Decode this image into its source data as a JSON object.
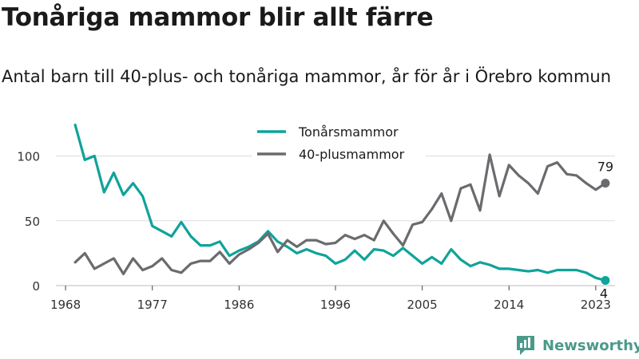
{
  "title": "Tonåriga mammor blir allt färre",
  "subtitle": "Antal barn till 40-plus- och tonåriga mammor, år för år i Örebro kommun",
  "brand": {
    "name": "Newsworthy",
    "icon": "bar-chart-logo-icon"
  },
  "colors": {
    "teen": "#0fa39a",
    "forty": "#6b6b6f",
    "grid": "#dddddd",
    "brand": "#4a9a8a"
  },
  "chart_data": {
    "type": "line",
    "title": "",
    "xlabel": "",
    "ylabel": "",
    "xlim": [
      1967,
      2025
    ],
    "ylim": [
      0,
      128
    ],
    "x_ticks": [
      "1968",
      "1977",
      "1986",
      "1996",
      "2005",
      "2014",
      "2023"
    ],
    "y_ticks": [
      "0",
      "50",
      "100"
    ],
    "grid": "horizontal",
    "legend": "top-center",
    "x": [
      1969,
      1970,
      1971,
      1972,
      1973,
      1974,
      1975,
      1976,
      1977,
      1978,
      1979,
      1980,
      1981,
      1982,
      1983,
      1984,
      1985,
      1986,
      1987,
      1988,
      1989,
      1990,
      1991,
      1992,
      1993,
      1994,
      1995,
      1996,
      1997,
      1998,
      1999,
      2000,
      2001,
      2002,
      2003,
      2004,
      2005,
      2006,
      2007,
      2008,
      2009,
      2010,
      2011,
      2012,
      2013,
      2014,
      2015,
      2016,
      2017,
      2018,
      2019,
      2020,
      2021,
      2022,
      2023,
      2024
    ],
    "series": [
      {
        "name": "Tonårsmammor",
        "values": [
          124,
          97,
          100,
          72,
          87,
          70,
          79,
          69,
          46,
          42,
          38,
          49,
          38,
          31,
          31,
          34,
          23,
          27,
          30,
          34,
          42,
          34,
          30,
          25,
          28,
          25,
          23,
          17,
          20,
          27,
          20,
          28,
          27,
          23,
          29,
          23,
          17,
          22,
          17,
          28,
          20,
          15,
          18,
          16,
          13,
          13,
          12,
          11,
          12,
          10,
          12,
          12,
          12,
          10,
          6,
          4
        ],
        "end_label": "4"
      },
      {
        "name": "40-plusmammor",
        "values": [
          18,
          25,
          13,
          17,
          21,
          9,
          21,
          12,
          15,
          21,
          12,
          10,
          17,
          19,
          19,
          26,
          17,
          24,
          28,
          33,
          40,
          26,
          35,
          30,
          35,
          35,
          32,
          33,
          39,
          36,
          39,
          35,
          50,
          40,
          31,
          47,
          49,
          59,
          71,
          50,
          75,
          78,
          58,
          101,
          69,
          93,
          85,
          79,
          71,
          92,
          95,
          86,
          85,
          79,
          74,
          79
        ],
        "end_label": "79"
      }
    ]
  }
}
